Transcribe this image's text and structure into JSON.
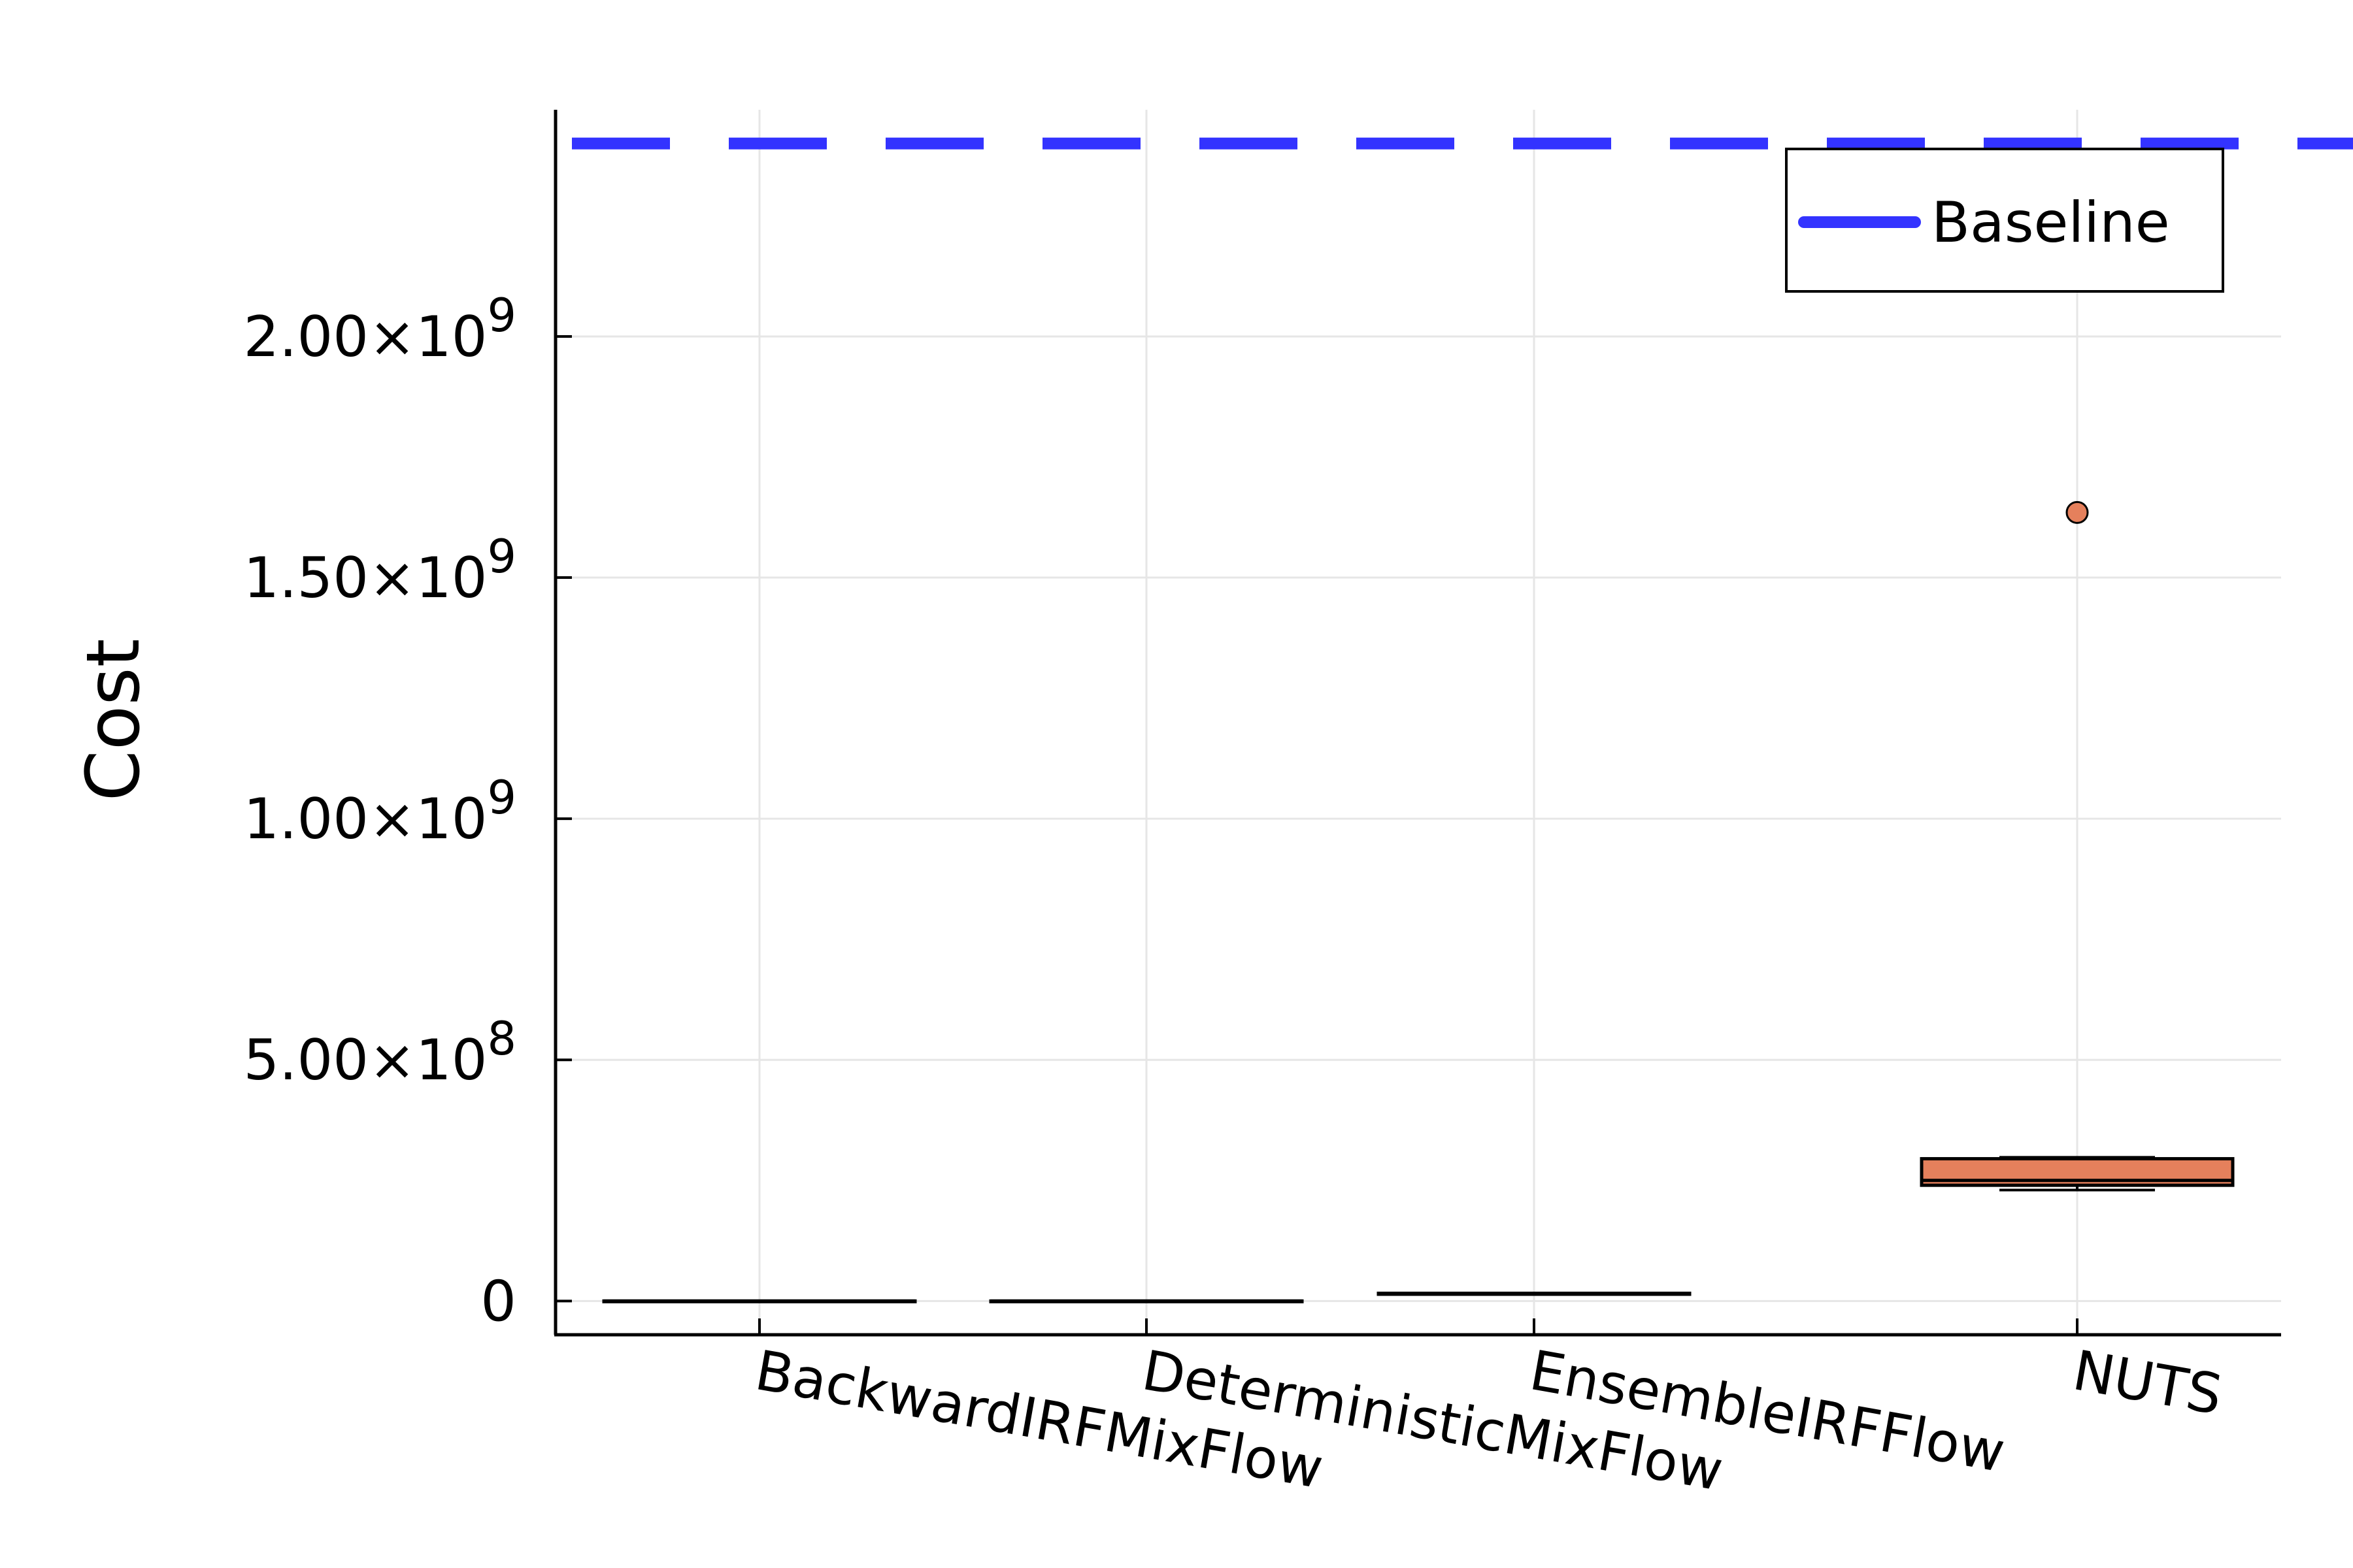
{
  "chart_data": {
    "type": "box",
    "title": "",
    "xlabel": "",
    "ylabel": "Cost",
    "ylim": [
      -70000000,
      2470000000
    ],
    "grid": true,
    "legend_position": "top-right",
    "categories": [
      "BackwardIRFMixFlow",
      "DeterministicMixFlow",
      "EnsembleIRFFlow",
      "NUTS"
    ],
    "yticks": [
      {
        "value": 0,
        "mantissa": "0",
        "times": "",
        "base": "",
        "exponent": ""
      },
      {
        "value": 500000000,
        "mantissa": "5.00",
        "times": "×",
        "base": "10",
        "exponent": "8"
      },
      {
        "value": 1000000000,
        "mantissa": "1.00",
        "times": "×",
        "base": "10",
        "exponent": "9"
      },
      {
        "value": 1500000000,
        "mantissa": "1.50",
        "times": "×",
        "base": "10",
        "exponent": "9"
      },
      {
        "value": 2000000000,
        "mantissa": "2.00",
        "times": "×",
        "base": "10",
        "exponent": "9"
      }
    ],
    "boxes": [
      {
        "category": "BackwardIRFMixFlow",
        "min": 0,
        "q1": 0,
        "median": 0,
        "q3": 0,
        "max": 0,
        "outliers": []
      },
      {
        "category": "DeterministicMixFlow",
        "min": 0,
        "q1": 0,
        "median": 0,
        "q3": 0,
        "max": 0,
        "outliers": []
      },
      {
        "category": "EnsembleIRFFlow",
        "min": 14000000,
        "q1": 14000000,
        "median": 15000000,
        "q3": 16000000,
        "max": 16000000,
        "outliers": []
      },
      {
        "category": "NUTS",
        "min": 230000000,
        "q1": 240000000,
        "median": 250000000,
        "q3": 295000000,
        "max": 298000000,
        "outliers": [
          1635000000
        ]
      }
    ],
    "reference_lines": [
      {
        "name": "Baseline",
        "value": 2400000000,
        "style": "dashed",
        "color": "#3333ff"
      }
    ],
    "colors": {
      "box_fill": "#e5805c",
      "outline": "#000000",
      "baseline": "#3333ff",
      "grid": "#e6e6e6"
    }
  }
}
